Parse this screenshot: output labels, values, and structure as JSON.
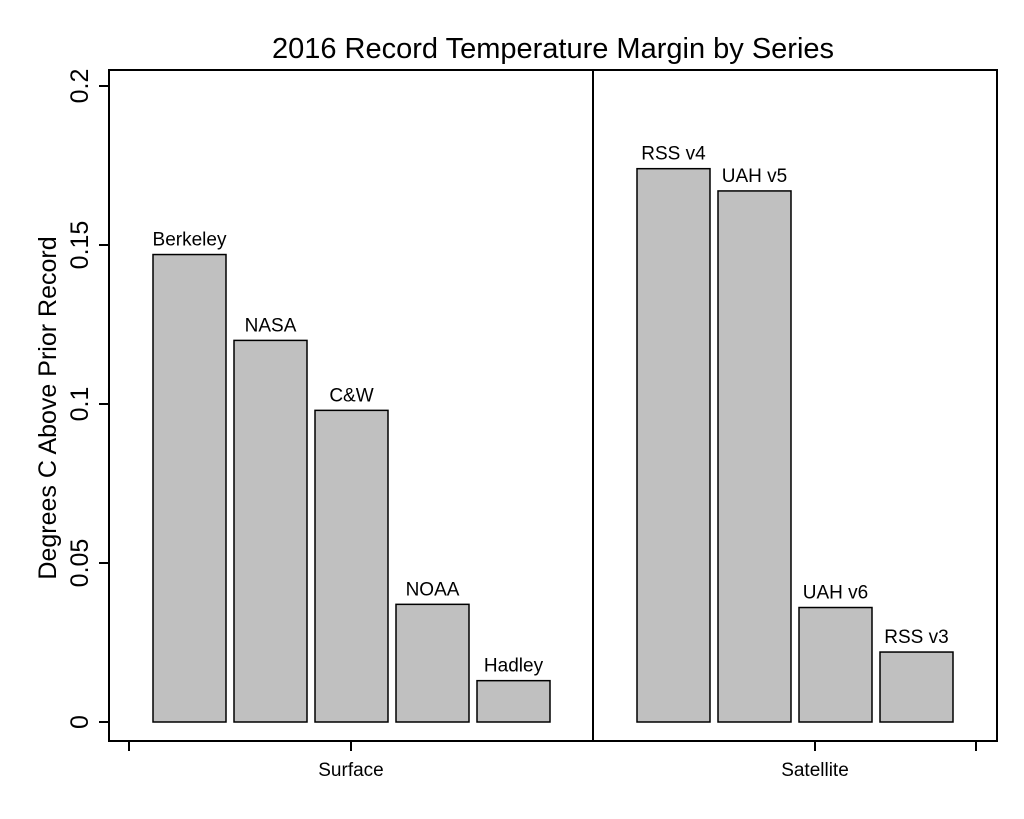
{
  "chart_data": {
    "type": "bar",
    "title": "2016 Record Temperature Margin by Series",
    "ylabel": "Degrees C Above Prior Record",
    "ylim": [
      0,
      0.2
    ],
    "yticks": [
      "0",
      "0.05",
      "0.1",
      "0.15",
      "0.2"
    ],
    "grid": false,
    "groups": [
      {
        "name": "Surface",
        "bars": [
          {
            "label": "Berkeley",
            "value": 0.147
          },
          {
            "label": "NASA",
            "value": 0.12
          },
          {
            "label": "C&W",
            "value": 0.098
          },
          {
            "label": "NOAA",
            "value": 0.037
          },
          {
            "label": "Hadley",
            "value": 0.013
          }
        ]
      },
      {
        "name": "Satellite",
        "bars": [
          {
            "label": "RSS v4",
            "value": 0.174
          },
          {
            "label": "UAH v5",
            "value": 0.167
          },
          {
            "label": "UAH v6",
            "value": 0.036
          },
          {
            "label": "RSS v3",
            "value": 0.022
          }
        ]
      }
    ],
    "colors": {
      "bar_fill": "#c0c0c0",
      "bar_stroke": "#000000",
      "axis": "#000000"
    }
  }
}
